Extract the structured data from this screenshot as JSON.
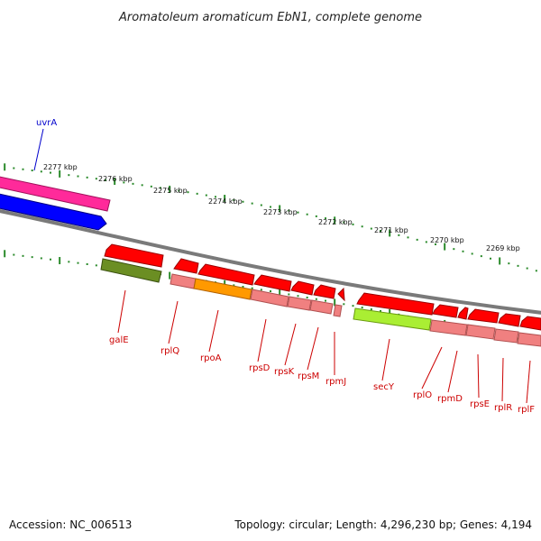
{
  "title": "Aromatoleum aromaticum EbN1, complete genome",
  "footer": {
    "accession": "Accession: NC_006513",
    "summary": "Topology: circular; Length: 4,296,230 bp; Genes: 4,194"
  },
  "ruler": [
    {
      "label": "2277 kbp"
    },
    {
      "label": "2276 kbp"
    },
    {
      "label": "2275 kbp"
    },
    {
      "label": "2274 kbp"
    },
    {
      "label": "2273 kbp"
    },
    {
      "label": "2272 kbp"
    },
    {
      "label": "2271 kbp"
    },
    {
      "label": "2270 kbp"
    },
    {
      "label": "2269 kbp"
    }
  ],
  "genes": [
    {
      "name": "uvrA",
      "strand": "forward",
      "color": "#ff2a9a"
    },
    {
      "name": "galE",
      "strand": "reverse",
      "color": "#ff0000"
    },
    {
      "name": "rplQ",
      "strand": "reverse",
      "color": "#ff0000"
    },
    {
      "name": "rpoA",
      "strand": "reverse",
      "color": "#ff0000"
    },
    {
      "name": "rpsD",
      "strand": "reverse",
      "color": "#ff0000"
    },
    {
      "name": "rpsK",
      "strand": "reverse",
      "color": "#ff0000"
    },
    {
      "name": "rpsM",
      "strand": "reverse",
      "color": "#ff0000"
    },
    {
      "name": "rpmJ",
      "strand": "reverse",
      "color": "#ff0000"
    },
    {
      "name": "secY",
      "strand": "reverse",
      "color": "#ff0000"
    },
    {
      "name": "rplO",
      "strand": "reverse",
      "color": "#ff0000"
    },
    {
      "name": "rpmD",
      "strand": "reverse",
      "color": "#ff0000"
    },
    {
      "name": "rpsE",
      "strand": "reverse",
      "color": "#ff0000"
    },
    {
      "name": "rplR",
      "strand": "reverse",
      "color": "#ff0000"
    },
    {
      "name": "rplF",
      "strand": "reverse",
      "color": "#ff0000"
    }
  ],
  "colors": {
    "forward_label": "#0000cc",
    "reverse_label": "#cc0000",
    "tick": "#2a8a2a",
    "backbone": "#808080",
    "forward_cds": "#0000ff",
    "forward_gene": "#ff2a9a",
    "reverse_cds": "#ff0000",
    "reverse_rna": "#f08080",
    "highlight_orange": "#ff9900",
    "highlight_olive": "#6b8e23",
    "highlight_lime": "#aaee33"
  }
}
